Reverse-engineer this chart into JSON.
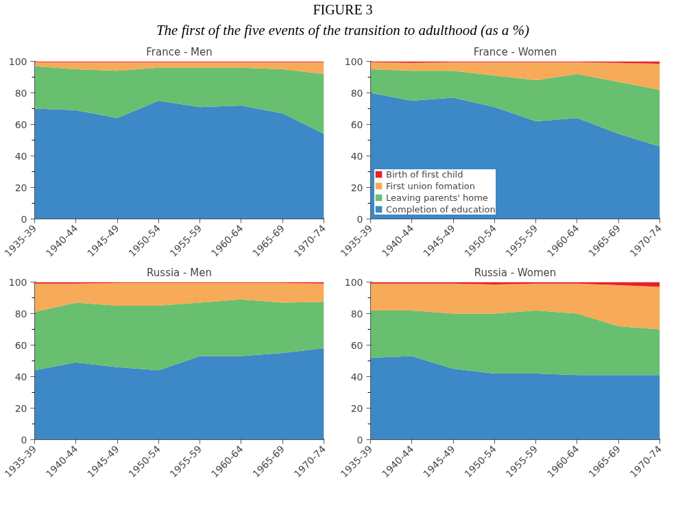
{
  "chart_data": [
    {
      "type": "area",
      "stacked": true,
      "title": "France - Men",
      "annotations": [
        "FIGURE 3",
        "The first of the five events of the transition to adulthood (as a %)"
      ],
      "categories": [
        "1935-39",
        "1940-44",
        "1945-49",
        "1950-54",
        "1955-59",
        "1960-64",
        "1965-69",
        "1970-74"
      ],
      "ylim": [
        0,
        100
      ],
      "yticks": [
        0,
        20,
        40,
        60,
        80,
        100
      ],
      "grid": false,
      "legend": false,
      "series": [
        {
          "color": "#3d88c6",
          "values": [
            70,
            69,
            64,
            75,
            71,
            72,
            67,
            54
          ]
        },
        {
          "color": "#68bf6f",
          "values": [
            27,
            26,
            30,
            21,
            25,
            24,
            28,
            38
          ]
        },
        {
          "color": "#f7aa58",
          "values": [
            2.5,
            4.5,
            5.5,
            3.5,
            3.5,
            3.5,
            4.5,
            7.5
          ]
        },
        {
          "color": "#e8202a",
          "values": [
            0.5,
            0.5,
            0.5,
            0.5,
            0.5,
            0.5,
            0.5,
            0.5
          ]
        }
      ]
    },
    {
      "type": "area",
      "stacked": true,
      "title": "France - Women",
      "categories": [
        "1935-39",
        "1940-44",
        "1945-49",
        "1950-54",
        "1955-59",
        "1960-64",
        "1965-69",
        "1970-74"
      ],
      "ylim": [
        0,
        100
      ],
      "yticks": [
        0,
        20,
        40,
        60,
        80,
        100
      ],
      "grid": false,
      "legend": "bottom left",
      "series": [
        {
          "name": "Completion of education",
          "color": "#3d88c6",
          "values": [
            80,
            75,
            77,
            71,
            62,
            64,
            54,
            46
          ]
        },
        {
          "name": "Leaving parents' home",
          "color": "#68bf6f",
          "values": [
            15,
            19,
            17,
            20,
            26,
            28,
            33,
            36
          ]
        },
        {
          "name": "First union fomation",
          "color": "#f7aa58",
          "values": [
            4.5,
            5,
            5.5,
            8.5,
            11.5,
            7.5,
            12,
            16.5
          ]
        },
        {
          "name": "Birth of first child",
          "color": "#e8202a",
          "values": [
            0.5,
            1,
            0.5,
            0.5,
            0.5,
            0.5,
            1,
            1.5
          ]
        }
      ]
    },
    {
      "type": "area",
      "stacked": true,
      "title": "Russia - Men",
      "categories": [
        "1935-39",
        "1940-44",
        "1945-49",
        "1950-54",
        "1955-59",
        "1960-64",
        "1965-69",
        "1970-74"
      ],
      "ylim": [
        0,
        100
      ],
      "yticks": [
        0,
        20,
        40,
        60,
        80,
        100
      ],
      "grid": false,
      "legend": false,
      "series": [
        {
          "color": "#3d88c6",
          "values": [
            44,
            49,
            46,
            44,
            53,
            53,
            55,
            58
          ]
        },
        {
          "color": "#68bf6f",
          "values": [
            37,
            38,
            39,
            41,
            34,
            36,
            32,
            29.5
          ]
        },
        {
          "color": "#f7aa58",
          "values": [
            18,
            12,
            14.5,
            14.5,
            12.5,
            10.5,
            12.5,
            11.5
          ]
        },
        {
          "color": "#e8202a",
          "values": [
            1,
            1,
            0.5,
            0.5,
            0.5,
            0.5,
            0.5,
            1
          ]
        }
      ]
    },
    {
      "type": "area",
      "stacked": true,
      "title": "Russia - Women",
      "categories": [
        "1935-39",
        "1940-44",
        "1945-49",
        "1950-54",
        "1955-59",
        "1960-64",
        "1965-69",
        "1970-74"
      ],
      "ylim": [
        0,
        100
      ],
      "yticks": [
        0,
        20,
        40,
        60,
        80,
        100
      ],
      "grid": false,
      "legend": false,
      "series": [
        {
          "color": "#3d88c6",
          "values": [
            52,
            53,
            45,
            42,
            42,
            41,
            41,
            41
          ]
        },
        {
          "color": "#68bf6f",
          "values": [
            30,
            29,
            35,
            38,
            40,
            39,
            31,
            29
          ]
        },
        {
          "color": "#f7aa58",
          "values": [
            17,
            17,
            19,
            18.5,
            17,
            19,
            26,
            27
          ]
        },
        {
          "color": "#e8202a",
          "values": [
            1,
            1,
            1,
            1.5,
            1,
            1,
            2,
            3
          ]
        }
      ]
    }
  ]
}
